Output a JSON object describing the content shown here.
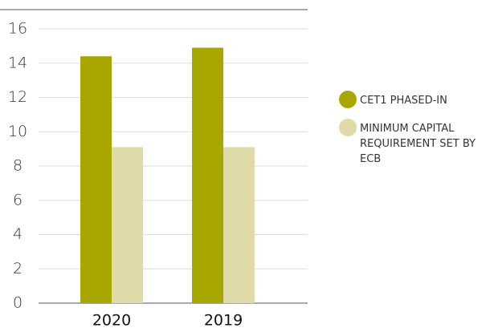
{
  "chart_data": {
    "type": "bar",
    "categories": [
      "2020",
      "2019"
    ],
    "series": [
      {
        "name": "CET1 PHASED-IN",
        "color": "#a8a700",
        "values": [
          14.4,
          14.9
        ]
      },
      {
        "name": "MINIMUM CAPITAL REQUIREMENT SET BY ECB",
        "color": "#dedba8",
        "values": [
          9.1,
          9.1
        ]
      }
    ],
    "ylim": [
      0,
      16
    ],
    "yticks": [
      0,
      2,
      4,
      6,
      8,
      10,
      12,
      14,
      16
    ],
    "grid": true,
    "legend": "right"
  }
}
